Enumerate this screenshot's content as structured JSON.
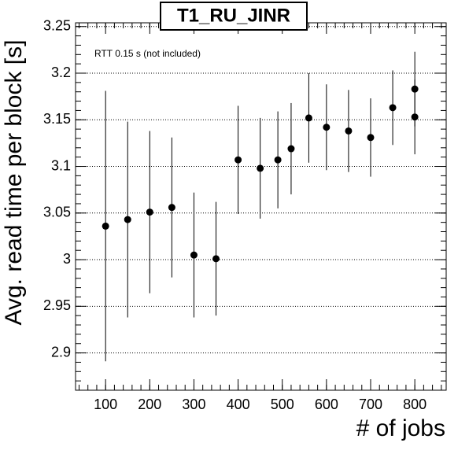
{
  "chart_data": {
    "type": "scatter",
    "title": "T1_RU_JINR",
    "annotation": "RTT 0.15 s (not included)",
    "x_label": "# of jobs",
    "y_label": "Avg. read time per block [s]",
    "series": [
      {
        "color": "#000000",
        "x": [
          100,
          150,
          200,
          250,
          300,
          350,
          400,
          450,
          490,
          520,
          560,
          600,
          650,
          700,
          750,
          800,
          800
        ],
        "values": [
          3.036,
          3.043,
          3.051,
          3.056,
          3.005,
          3.001,
          3.107,
          3.098,
          3.107,
          3.119,
          3.152,
          3.142,
          3.138,
          3.131,
          3.163,
          3.183,
          3.153
        ],
        "errors": [
          0.145,
          0.105,
          0.087,
          0.075,
          0.067,
          0.061,
          0.058,
          0.054,
          0.052,
          0.049,
          0.048,
          0.046,
          0.044,
          0.042,
          0.04,
          0.04,
          0.04
        ]
      }
    ],
    "xlim": [
      32,
      871
    ],
    "ylim": [
      2.86,
      3.254
    ],
    "xticks": [
      100,
      200,
      300,
      400,
      500,
      600,
      700,
      800
    ],
    "yticks": [
      2.9,
      2.95,
      3,
      3.05,
      3.1,
      3.15,
      3.2,
      3.25
    ],
    "grid": true
  }
}
